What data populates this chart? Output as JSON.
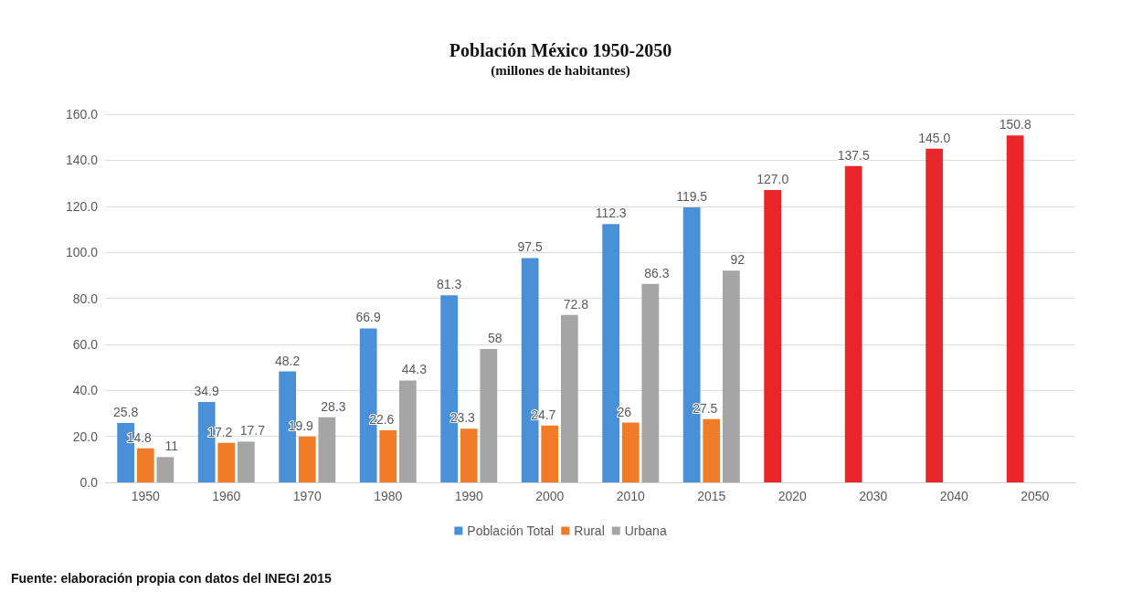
{
  "chart_data": {
    "type": "bar",
    "title": "Población México 1950-2050",
    "subtitle": "(millones de habitantes)",
    "categories": [
      "1950",
      "1960",
      "1970",
      "1980",
      "1990",
      "2000",
      "2010",
      "2015",
      "2020",
      "2030",
      "2040",
      "2050"
    ],
    "series": [
      {
        "name": "Población Total",
        "color": "#4a90d9",
        "colors": [
          "#4a90d9",
          "#4a90d9",
          "#4a90d9",
          "#4a90d9",
          "#4a90d9",
          "#4a90d9",
          "#4a90d9",
          "#4a90d9",
          "#e8262a",
          "#e8262a",
          "#e8262a",
          "#e8262a"
        ],
        "values": [
          25.8,
          34.9,
          48.2,
          66.9,
          81.3,
          97.5,
          112.3,
          119.5,
          127.0,
          137.5,
          145.0,
          150.8
        ],
        "value_labels": [
          "25.8",
          "34.9",
          "48.2",
          "66.9",
          "81.3",
          "97.5",
          "112.3",
          "119.5",
          "127.0",
          "137.5",
          "145.0",
          "150.8"
        ]
      },
      {
        "name": "Rural",
        "color": "#f07c2a",
        "values": [
          14.8,
          17.2,
          19.9,
          22.6,
          23.3,
          24.7,
          26,
          27.5,
          null,
          null,
          null,
          null
        ],
        "value_labels": [
          "14.8",
          "17.2",
          "19.9",
          "22.6",
          "23.3",
          "24.7",
          "26",
          "27.5",
          null,
          null,
          null,
          null
        ]
      },
      {
        "name": "Urbana",
        "color": "#a5a5a5",
        "values": [
          11,
          17.7,
          28.3,
          44.3,
          58,
          72.8,
          86.3,
          92,
          null,
          null,
          null,
          null
        ],
        "value_labels": [
          "11",
          "17.7",
          "28.3",
          "44.3",
          "58",
          "72.8",
          "86.3",
          "92",
          null,
          null,
          null,
          null
        ]
      }
    ],
    "ylim": [
      0,
      160
    ],
    "yticks": [
      {
        "value": 0,
        "label": "0.0"
      },
      {
        "value": 20,
        "label": "20.0"
      },
      {
        "value": 40,
        "label": "40.0"
      },
      {
        "value": 60,
        "label": "60.0"
      },
      {
        "value": 80,
        "label": "80.0"
      },
      {
        "value": 100,
        "label": "100.0"
      },
      {
        "value": 120,
        "label": "120.0"
      },
      {
        "value": 140,
        "label": "140.0"
      },
      {
        "value": 160,
        "label": "160.0"
      }
    ],
    "grid": "y",
    "legend": "bottom",
    "annotations": [
      "Fuente: elaboración propia con datos del INEGI 2015"
    ]
  }
}
